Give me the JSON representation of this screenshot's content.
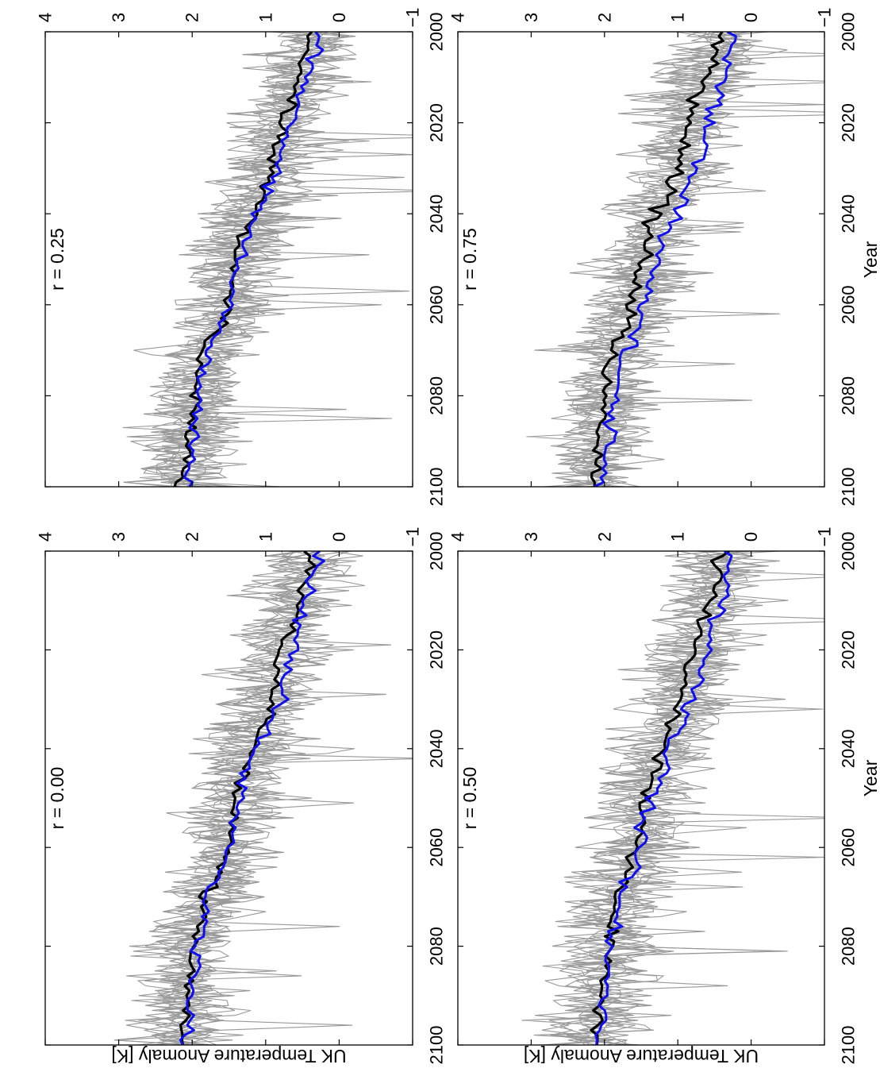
{
  "colors": {
    "ensemble": "#999999",
    "mean_black": "#000000",
    "mean_blue": "#1010ee",
    "axis": "#000000",
    "background": "#ffffff"
  },
  "chart_data": [
    {
      "type": "line",
      "title": "r = 0.00",
      "xlabel": "",
      "ylabel": "UK Temperature Anomaly [K]",
      "xlim": [
        2000,
        2100
      ],
      "ylim": [
        -1,
        4
      ],
      "xticks": [
        "2000",
        "2020",
        "2040",
        "2060",
        "2080",
        "2100"
      ],
      "yticks": [
        "−1",
        "0",
        "1",
        "2",
        "3",
        "4"
      ],
      "grid": false,
      "series": [
        {
          "role": "ensemble members",
          "color": "#999999",
          "count": 12
        },
        {
          "role": "mean",
          "color": "#000000",
          "x": [
            2000,
            2005,
            2010,
            2015,
            2020,
            2025,
            2030,
            2035,
            2040,
            2045,
            2050,
            2055,
            2060,
            2065,
            2070,
            2075,
            2080,
            2085,
            2090,
            2095,
            2100
          ],
          "values": [
            0.4,
            0.45,
            0.55,
            0.65,
            0.8,
            0.85,
            0.9,
            1.0,
            1.2,
            1.3,
            1.4,
            1.45,
            1.5,
            1.6,
            1.85,
            1.9,
            1.95,
            2.0,
            2.05,
            2.1,
            2.15
          ]
        },
        {
          "role": "mean",
          "color": "#1010ee",
          "x": [
            2000,
            2005,
            2010,
            2015,
            2020,
            2025,
            2030,
            2035,
            2040,
            2045,
            2050,
            2055,
            2060,
            2065,
            2070,
            2075,
            2080,
            2085,
            2090,
            2095,
            2100
          ],
          "values": [
            0.3,
            0.35,
            0.45,
            0.55,
            0.65,
            0.75,
            0.8,
            0.95,
            1.15,
            1.25,
            1.35,
            1.45,
            1.5,
            1.6,
            1.8,
            1.85,
            1.9,
            1.95,
            2.0,
            2.05,
            2.1
          ]
        }
      ]
    },
    {
      "type": "line",
      "title": "r = 0.25",
      "xlabel": "",
      "ylabel": "",
      "xlim": [
        2000,
        2100
      ],
      "ylim": [
        -1,
        4
      ],
      "xticks": [
        "2000",
        "2020",
        "2040",
        "2060",
        "2080",
        "2100"
      ],
      "yticks": [
        "−1",
        "0",
        "1",
        "2",
        "3",
        "4"
      ],
      "grid": false,
      "series": [
        {
          "role": "ensemble members",
          "color": "#999999",
          "count": 12
        },
        {
          "role": "mean",
          "color": "#000000",
          "x": [
            2000,
            2005,
            2010,
            2015,
            2020,
            2025,
            2030,
            2035,
            2040,
            2045,
            2050,
            2055,
            2060,
            2065,
            2070,
            2075,
            2080,
            2085,
            2090,
            2095,
            2100
          ],
          "values": [
            0.4,
            0.45,
            0.55,
            0.65,
            0.75,
            0.85,
            0.9,
            1.0,
            1.2,
            1.3,
            1.4,
            1.45,
            1.5,
            1.6,
            1.85,
            1.9,
            1.95,
            2.0,
            2.05,
            2.1,
            2.15
          ]
        },
        {
          "role": "mean",
          "color": "#1010ee",
          "x": [
            2000,
            2005,
            2010,
            2015,
            2020,
            2025,
            2030,
            2035,
            2040,
            2045,
            2050,
            2055,
            2060,
            2065,
            2070,
            2075,
            2080,
            2085,
            2090,
            2095,
            2100
          ],
          "values": [
            0.3,
            0.35,
            0.45,
            0.55,
            0.65,
            0.75,
            0.85,
            0.95,
            1.15,
            1.25,
            1.35,
            1.45,
            1.5,
            1.6,
            1.8,
            1.85,
            1.9,
            1.95,
            2.0,
            2.05,
            2.1
          ]
        }
      ]
    },
    {
      "type": "line",
      "title": "r = 0.50",
      "xlabel": "Year",
      "ylabel": "UK Temperature Anomaly [K]",
      "xlim": [
        2000,
        2100
      ],
      "ylim": [
        -1,
        4
      ],
      "xticks": [
        "2000",
        "2020",
        "2040",
        "2060",
        "2080",
        "2100"
      ],
      "yticks": [
        "−1",
        "0",
        "1",
        "2",
        "3",
        "4"
      ],
      "grid": false,
      "series": [
        {
          "role": "ensemble members",
          "color": "#999999",
          "count": 12
        },
        {
          "role": "mean",
          "color": "#000000",
          "x": [
            2000,
            2005,
            2010,
            2015,
            2020,
            2025,
            2030,
            2035,
            2040,
            2045,
            2050,
            2055,
            2060,
            2065,
            2070,
            2075,
            2080,
            2085,
            2090,
            2095,
            2100
          ],
          "values": [
            0.4,
            0.45,
            0.55,
            0.7,
            0.8,
            0.9,
            0.95,
            1.05,
            1.25,
            1.35,
            1.45,
            1.5,
            1.55,
            1.65,
            1.85,
            1.9,
            1.95,
            2.0,
            2.05,
            2.1,
            2.15
          ]
        },
        {
          "role": "mean",
          "color": "#1010ee",
          "x": [
            2000,
            2005,
            2010,
            2015,
            2020,
            2025,
            2030,
            2035,
            2040,
            2045,
            2050,
            2055,
            2060,
            2065,
            2070,
            2075,
            2080,
            2085,
            2090,
            2095,
            2100
          ],
          "values": [
            0.3,
            0.3,
            0.4,
            0.5,
            0.6,
            0.7,
            0.8,
            0.95,
            1.1,
            1.25,
            1.35,
            1.45,
            1.5,
            1.6,
            1.8,
            1.85,
            1.9,
            1.95,
            2.0,
            2.05,
            2.1
          ]
        }
      ]
    },
    {
      "type": "line",
      "title": "r = 0.75",
      "xlabel": "Year",
      "ylabel": "",
      "xlim": [
        2000,
        2100
      ],
      "ylim": [
        -1,
        4
      ],
      "xticks": [
        "2000",
        "2020",
        "2040",
        "2060",
        "2080",
        "2100"
      ],
      "yticks": [
        "−1",
        "0",
        "1",
        "2",
        "3",
        "4"
      ],
      "grid": false,
      "series": [
        {
          "role": "ensemble members",
          "color": "#999999",
          "count": 12
        },
        {
          "role": "mean",
          "color": "#000000",
          "x": [
            2000,
            2005,
            2010,
            2015,
            2020,
            2025,
            2030,
            2035,
            2040,
            2045,
            2050,
            2055,
            2060,
            2065,
            2070,
            2075,
            2080,
            2085,
            2090,
            2095,
            2100
          ],
          "values": [
            0.4,
            0.5,
            0.6,
            0.75,
            0.85,
            0.95,
            1.0,
            1.1,
            1.3,
            1.4,
            1.5,
            1.55,
            1.6,
            1.7,
            1.9,
            1.95,
            2.0,
            2.0,
            2.05,
            2.1,
            2.15
          ]
        },
        {
          "role": "mean",
          "color": "#1010ee",
          "x": [
            2000,
            2005,
            2010,
            2015,
            2020,
            2025,
            2030,
            2035,
            2040,
            2045,
            2050,
            2055,
            2060,
            2065,
            2070,
            2075,
            2080,
            2085,
            2090,
            2095,
            2100
          ],
          "values": [
            0.25,
            0.3,
            0.35,
            0.45,
            0.55,
            0.65,
            0.75,
            0.9,
            1.05,
            1.2,
            1.3,
            1.4,
            1.45,
            1.55,
            1.75,
            1.8,
            1.85,
            1.9,
            1.95,
            2.0,
            2.1
          ]
        }
      ]
    }
  ]
}
